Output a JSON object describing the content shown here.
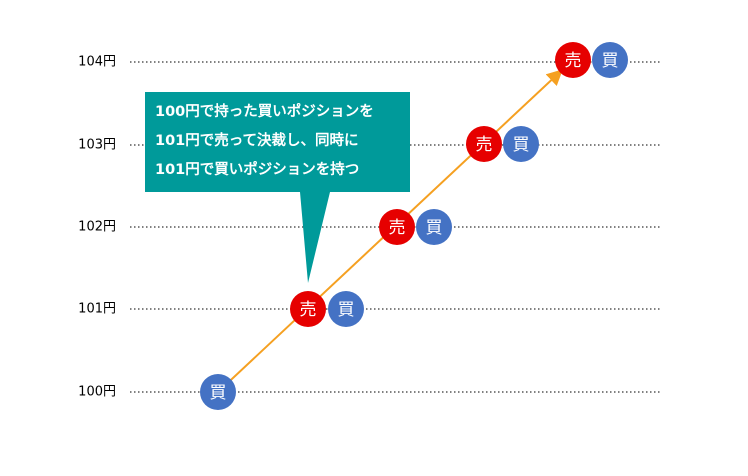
{
  "levels": [
    "104円",
    "103円",
    "102円",
    "101円",
    "100円"
  ],
  "nodes": [
    {
      "label": "買"
    },
    {
      "label": "売"
    },
    {
      "label": "買"
    },
    {
      "label": "売"
    },
    {
      "label": "買"
    },
    {
      "label": "売"
    },
    {
      "label": "買"
    },
    {
      "label": "売"
    },
    {
      "label": "買"
    }
  ],
  "callout": {
    "lines": [
      "100円で持った買いポジションを",
      "101円で売って決裁し、同時に",
      "101円で買いポジションを持つ"
    ]
  }
}
